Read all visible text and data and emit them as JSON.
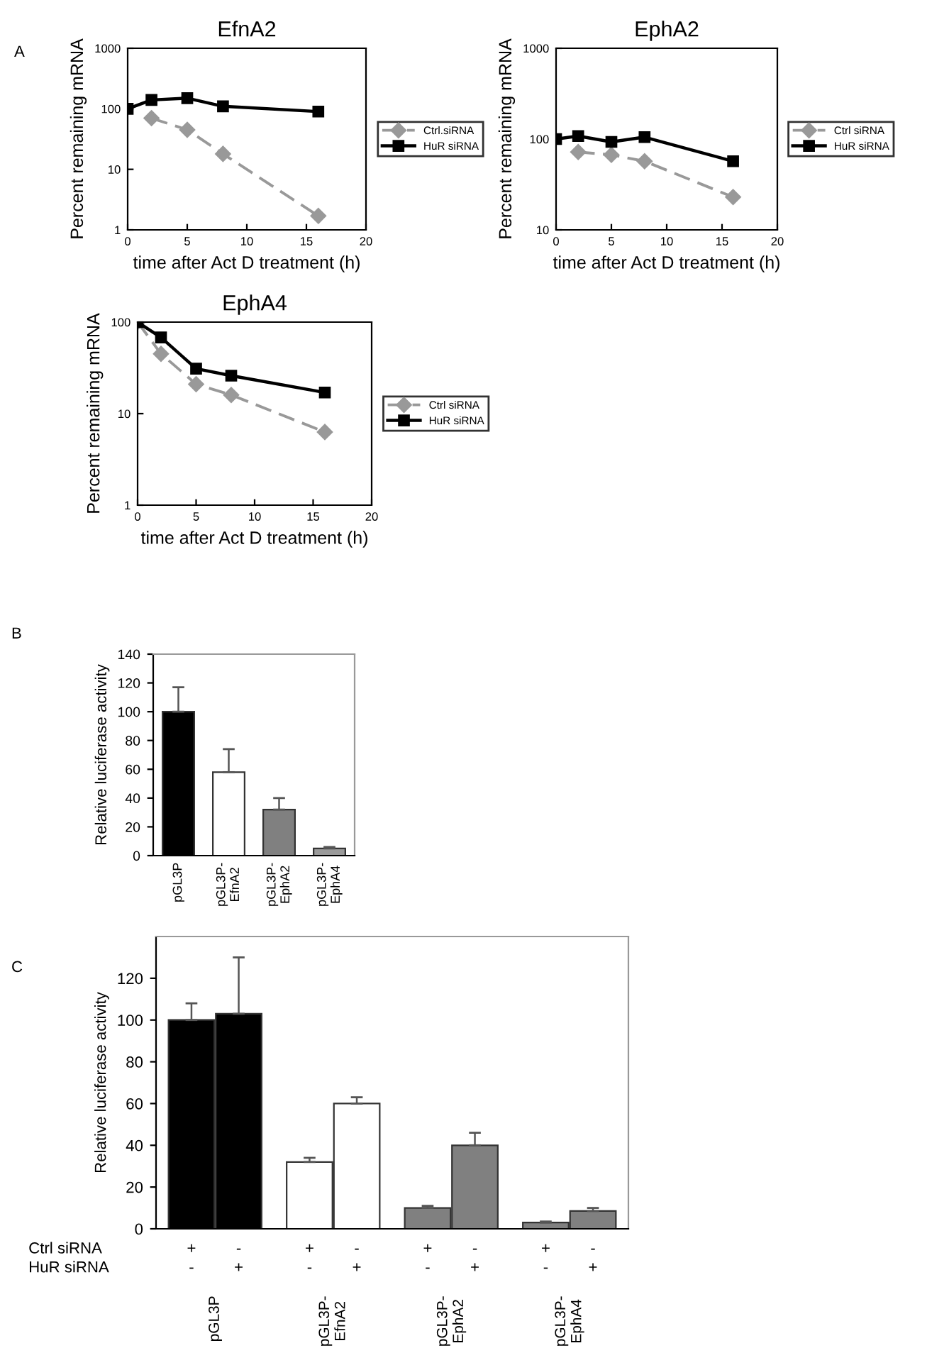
{
  "chart_data": [
    {
      "type": "line",
      "title": "EfnA2",
      "xlabel": "time after Act D treatment (h)",
      "ylabel": "Percent remaining mRNA",
      "x": [
        0,
        2,
        5,
        8,
        16
      ],
      "log": true,
      "xlim": [
        0,
        20
      ],
      "xticks": [
        0,
        5,
        10,
        15,
        20
      ],
      "ylim": [
        1,
        1000
      ],
      "yticks": [
        1,
        10,
        100,
        1000
      ],
      "legend": "right",
      "grid": false,
      "annotations": [
        "A"
      ],
      "series": [
        {
          "name": "Ctrl.siRNA",
          "color": "#999999",
          "marker": "diamond",
          "line_style": "dashed",
          "values": [
            null,
            70,
            45,
            18,
            1.7
          ]
        },
        {
          "name": "HuR siRNA",
          "color": "#000000",
          "marker": "square",
          "line_style": "solid",
          "values": [
            100,
            140,
            150,
            110,
            90
          ]
        }
      ]
    },
    {
      "type": "line",
      "title": "EphA2",
      "xlabel": "time after Act D treatment (h)",
      "ylabel": "Percent remaining mRNA",
      "x": [
        0,
        2,
        5,
        8,
        16
      ],
      "log": true,
      "xlim": [
        0,
        20
      ],
      "xticks": [
        0,
        5,
        10,
        15,
        20
      ],
      "ylim": [
        10,
        1000
      ],
      "yticks": [
        10,
        100,
        1000
      ],
      "legend": "right",
      "grid": false,
      "series": [
        {
          "name": "Ctrl siRNA",
          "color": "#999999",
          "marker": "diamond",
          "line_style": "dashed",
          "values": [
            null,
            72,
            67,
            57,
            23
          ]
        },
        {
          "name": "HuR siRNA",
          "color": "#000000",
          "marker": "square",
          "line_style": "solid",
          "values": [
            100,
            108,
            93,
            105,
            57
          ]
        }
      ]
    },
    {
      "type": "line",
      "title": "EphA4",
      "xlabel": "time after Act D treatment (h)",
      "ylabel": "Percent remaining mRNA",
      "x": [
        0,
        2,
        5,
        8,
        16
      ],
      "log": true,
      "xlim": [
        0,
        20
      ],
      "xticks": [
        0,
        5,
        10,
        15,
        20
      ],
      "ylim": [
        1,
        100
      ],
      "yticks": [
        1,
        10,
        100
      ],
      "legend": "right",
      "grid": false,
      "series": [
        {
          "name": "Ctrl siRNA",
          "color": "#999999",
          "marker": "diamond",
          "line_style": "dashed",
          "values": [
            100,
            45,
            21,
            16,
            6.3
          ]
        },
        {
          "name": "HuR siRNA",
          "color": "#000000",
          "marker": "square",
          "line_style": "solid",
          "values": [
            100,
            68,
            31,
            26,
            17
          ]
        }
      ]
    },
    {
      "type": "bar",
      "ylabel": "Relative luciferase activity",
      "categories": [
        "pGL3P",
        "pGL3P-\nEfnA2",
        "pGL3P-\nEphA2",
        "pGL3P-\nEphA4"
      ],
      "ylim": [
        0,
        140
      ],
      "yticks": [
        0,
        20,
        40,
        60,
        80,
        100,
        120,
        140
      ],
      "grid": false,
      "annotations": [
        "B"
      ],
      "series": [
        {
          "values": [
            100,
            58,
            32,
            5
          ],
          "colors": [
            "#000000",
            "#ffffff",
            "#808080",
            "#9a9a9a"
          ],
          "errors": [
            [
              100,
              117
            ],
            [
              58,
              74
            ],
            [
              32,
              40
            ],
            [
              5,
              6
            ]
          ]
        }
      ]
    },
    {
      "type": "bar",
      "ylabel": "Relative luciferase activity",
      "categories": [
        "pGL3P",
        "pGL3P-\nEfnA2",
        "pGL3P-\nEphA2",
        "pGL3P-\nEphA4"
      ],
      "ylim": [
        0,
        140
      ],
      "yticks": [
        0,
        20,
        40,
        60,
        80,
        100,
        120
      ],
      "grid": false,
      "annotations": [
        "C",
        "Ctrl siRNA",
        "+",
        "-",
        "+",
        "-",
        "+",
        "-",
        "+",
        "-",
        "HuR siRNA",
        "-",
        "+",
        "-",
        "+",
        "-",
        "+",
        "-",
        "+"
      ],
      "series": [
        {
          "values": [
            100,
            32,
            10,
            3
          ],
          "colors": [
            "#000000",
            "#ffffff",
            "#808080",
            "#808080"
          ],
          "errors": [
            [
              100,
              108
            ],
            [
              32,
              34
            ],
            [
              10,
              11
            ],
            [
              3,
              3.5
            ]
          ]
        },
        {
          "values": [
            103,
            60,
            40,
            8.5
          ],
          "colors": [
            "#000000",
            "#ffffff",
            "#808080",
            "#808080"
          ],
          "errors": [
            [
              103,
              130
            ],
            [
              60,
              63
            ],
            [
              40,
              46
            ],
            [
              8.5,
              10
            ]
          ]
        }
      ]
    }
  ]
}
